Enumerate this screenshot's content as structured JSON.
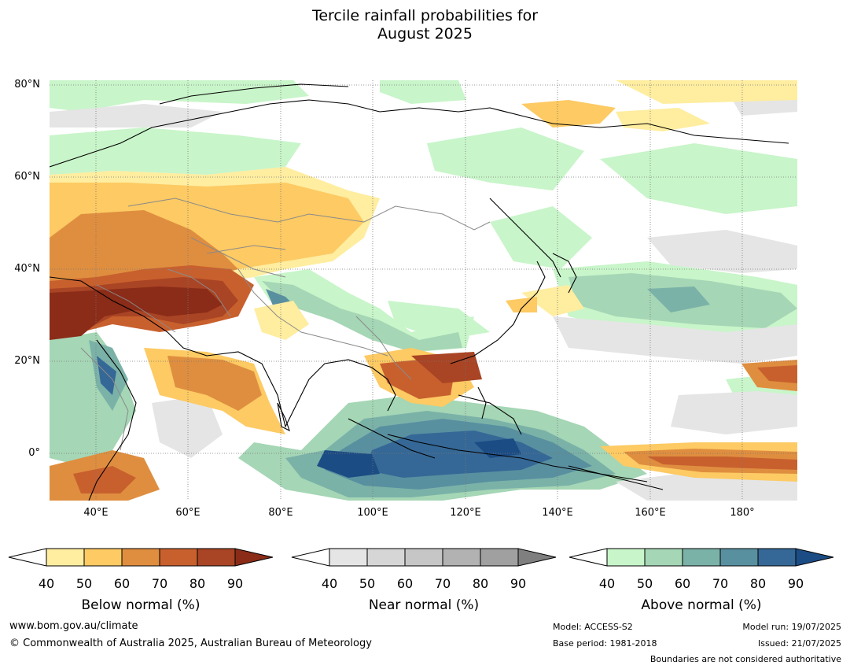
{
  "title_line1": "Tercile rainfall probabilities for",
  "title_line2": "August 2025",
  "map": {
    "lat_labels": [
      "80°N",
      "60°N",
      "40°N",
      "20°N",
      "0°"
    ],
    "lon_labels": [
      "40°E",
      "60°E",
      "80°E",
      "100°E",
      "120°E",
      "140°E",
      "160°E",
      "180°"
    ]
  },
  "legends": [
    {
      "title": "Below normal (%)",
      "ticks": [
        "40",
        "50",
        "60",
        "70",
        "80",
        "90"
      ],
      "colors": [
        "#ffeda0",
        "#fdca63",
        "#df8e3f",
        "#c8602e",
        "#a94424",
        "#8a2c18"
      ]
    },
    {
      "title": "Near normal (%)",
      "ticks": [
        "40",
        "50",
        "60",
        "70",
        "80",
        "90"
      ],
      "colors": [
        "#e5e5e5",
        "#d6d6d6",
        "#c6c6c6",
        "#b2b2b2",
        "#a0a0a0",
        "#7f7f7f"
      ]
    },
    {
      "title": "Above normal (%)",
      "ticks": [
        "40",
        "50",
        "60",
        "70",
        "80",
        "90"
      ],
      "colors": [
        "#c8f5c9",
        "#a5d6b5",
        "#7bb2a8",
        "#5990a0",
        "#356896",
        "#1c4c84"
      ]
    }
  ],
  "footer": {
    "url": "www.bom.gov.au/climate",
    "copyright": "© Commonwealth of Australia 2025, Australian Bureau of Meteorology",
    "model": "Model: ACCESS-S2",
    "base_period": "Base period: 1981-2018",
    "model_run": "Model run: 19/07/2025",
    "issued": "Issued: 21/07/2025",
    "disclaimer": "Boundaries are not considered authoritative"
  }
}
